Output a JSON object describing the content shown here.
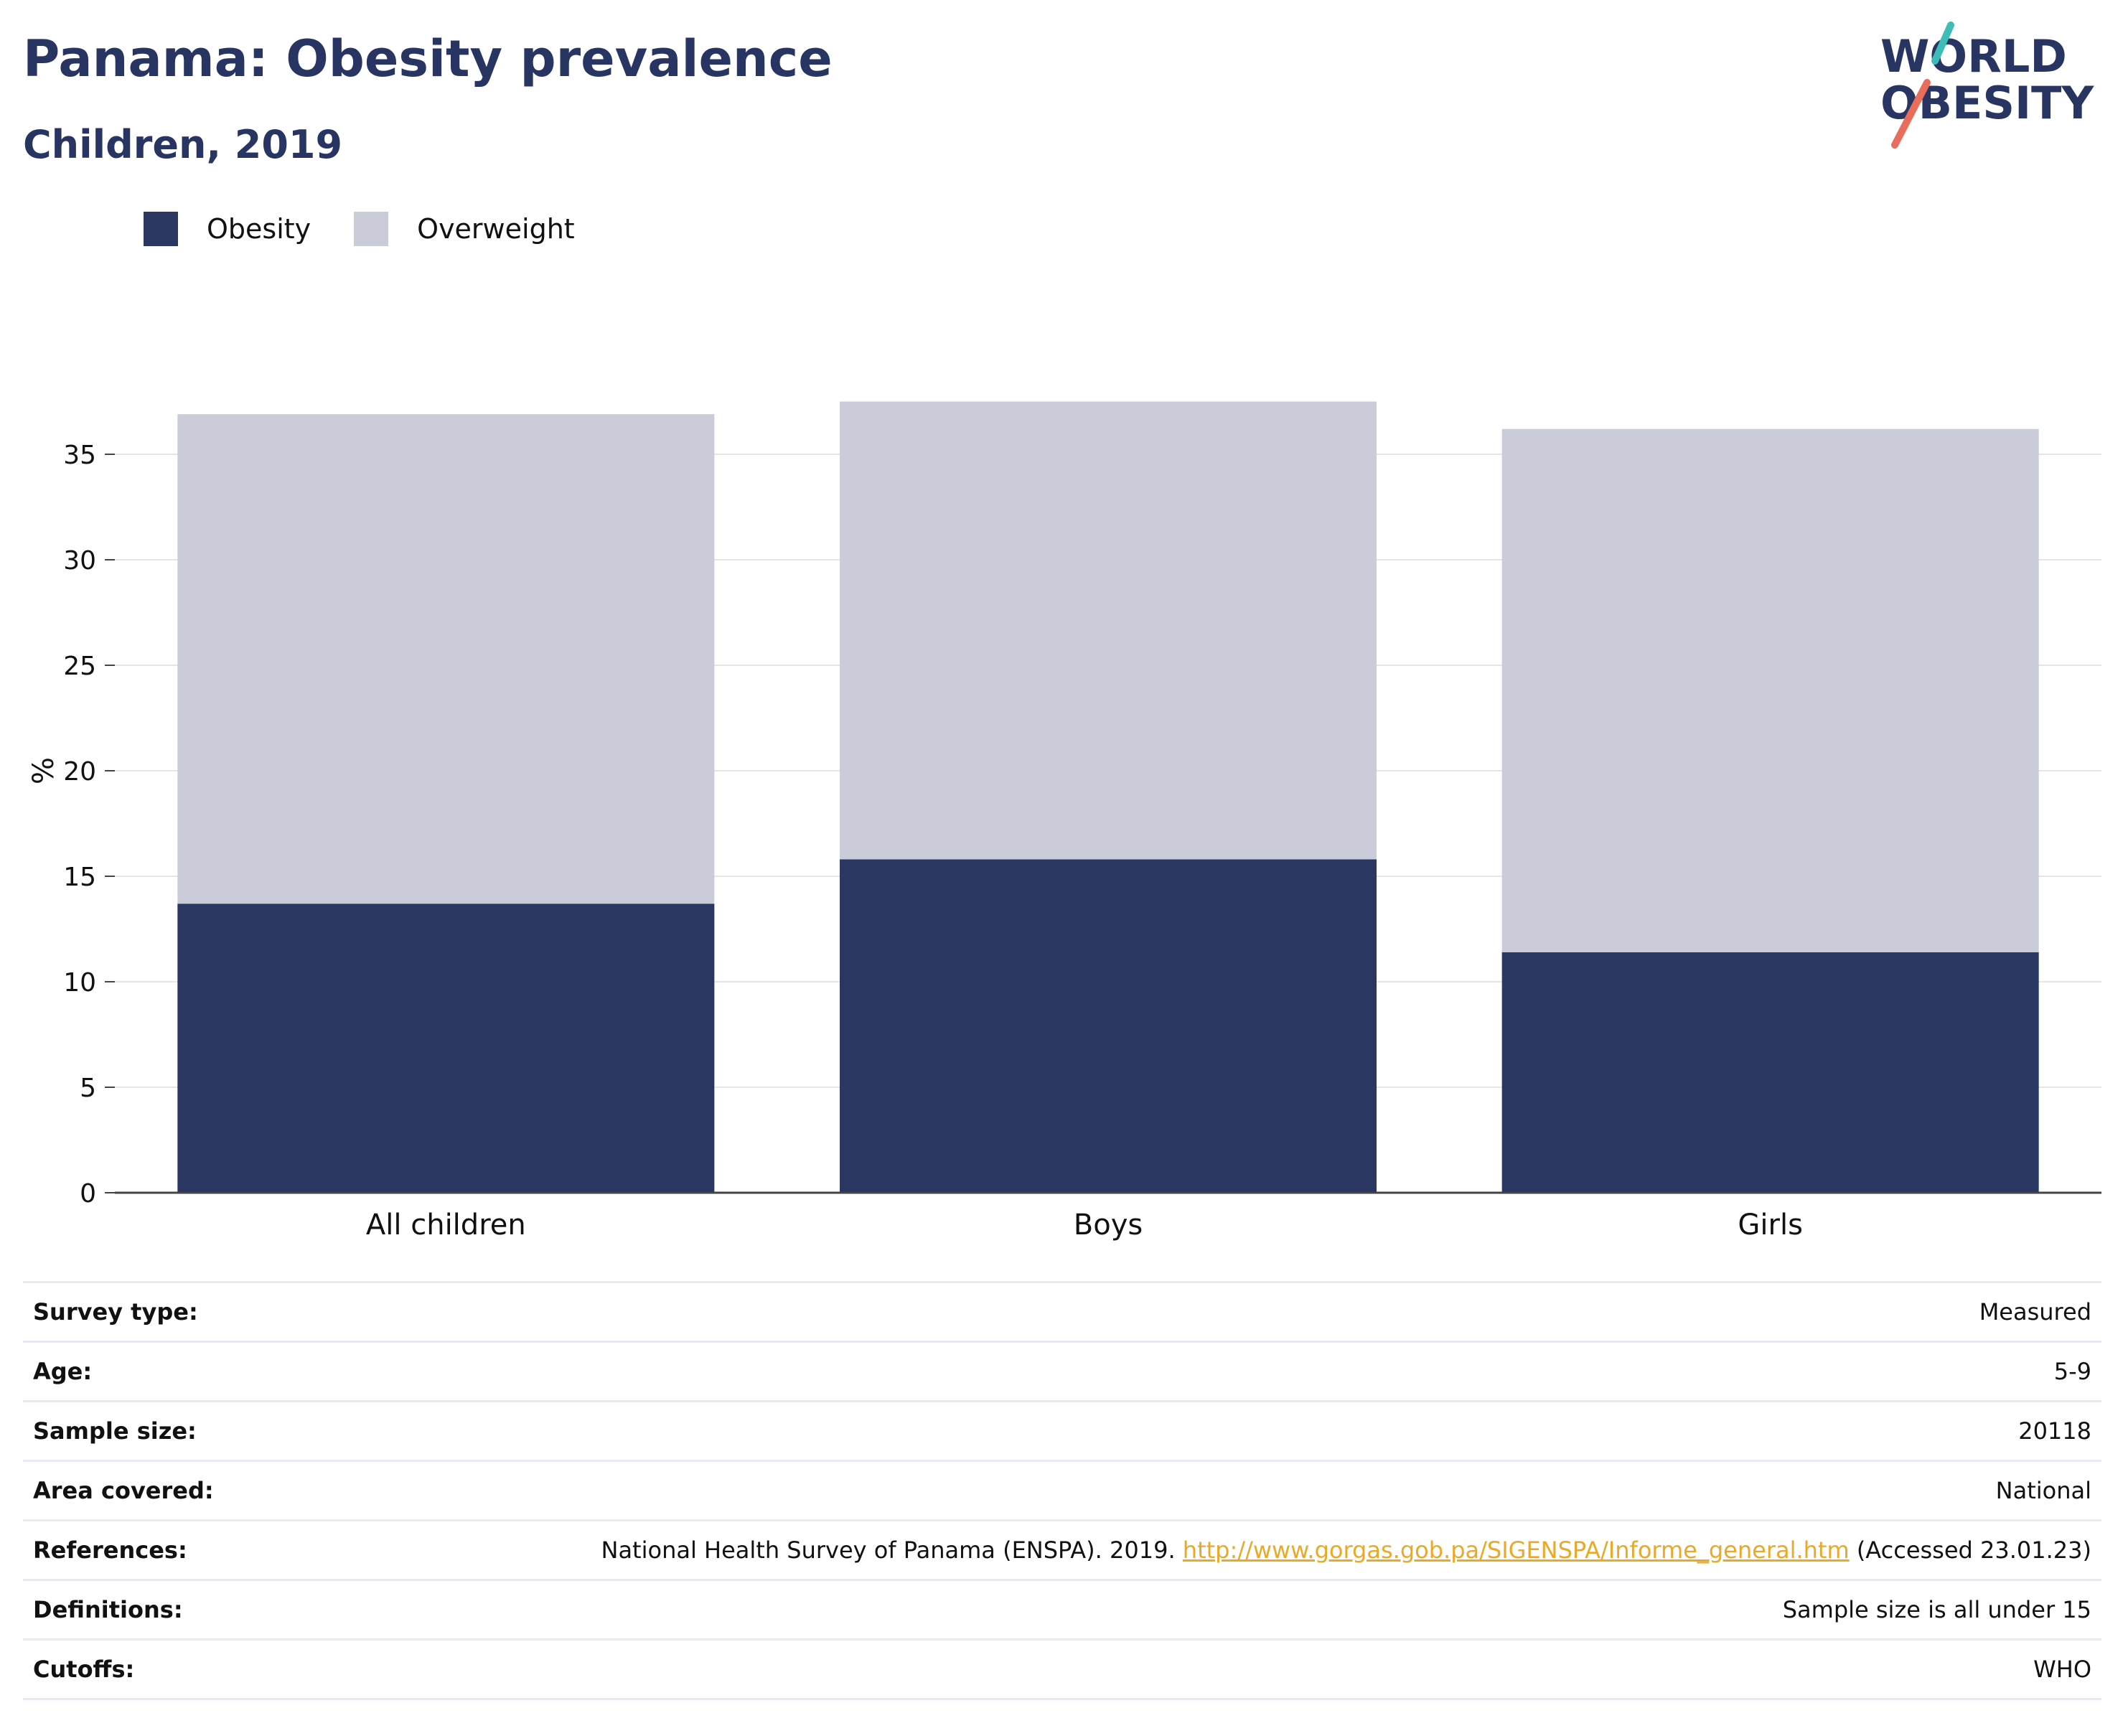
{
  "header": {
    "title": "Panama: Obesity prevalence",
    "subtitle": "Children, 2019"
  },
  "logo": {
    "line1": "WORLD",
    "line2": "OBESITY",
    "navy": "#283562",
    "teal": "#3dbdb8",
    "coral": "#e86d5b"
  },
  "colors": {
    "obesity": "#2a3763",
    "overweight": "#cacdd9",
    "gridline": "#e5e5e5",
    "axis": "#444444",
    "link": "#e9a92a"
  },
  "chart_data": {
    "type": "bar",
    "stacked": true,
    "categories": [
      "All children",
      "Boys",
      "Girls"
    ],
    "series": [
      {
        "name": "Obesity",
        "values": [
          13.7,
          15.8,
          11.4
        ]
      },
      {
        "name": "Overweight",
        "values": [
          23.2,
          21.7,
          24.8
        ]
      }
    ],
    "ylabel": "%",
    "xlabel": "",
    "ylim": [
      0,
      37.5
    ],
    "yticks": [
      0,
      5,
      10,
      15,
      20,
      25,
      30,
      35
    ],
    "grid": true,
    "legend_position": "top-left"
  },
  "info": [
    {
      "label": "Survey type:",
      "value": "Measured"
    },
    {
      "label": "Age:",
      "value": "5-9"
    },
    {
      "label": "Sample size:",
      "value": "20118"
    },
    {
      "label": "Area covered:",
      "value": "National"
    },
    {
      "label": "References:",
      "value_prefix": "National Health Survey of Panama (ENSPA). 2019. ",
      "link": "http://www.gorgas.gob.pa/SIGENSPA/Informe_general.htm",
      "value_suffix": " (Accessed 23.01.23)"
    },
    {
      "label": "Definitions:",
      "value": "Sample size is all under 15"
    },
    {
      "label": "Cutoffs:",
      "value": "WHO"
    }
  ]
}
